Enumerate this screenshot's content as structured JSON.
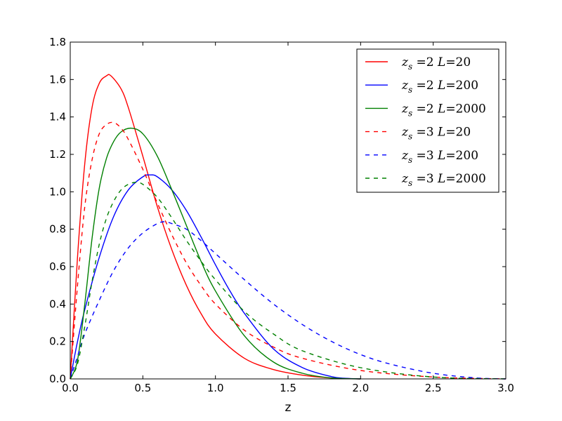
{
  "chart_data": {
    "type": "line",
    "title": "",
    "xlabel": "z",
    "ylabel": "",
    "xlim": [
      0,
      3
    ],
    "ylim": [
      0,
      1.8
    ],
    "xticks": [
      0.0,
      0.5,
      1.0,
      1.5,
      2.0,
      2.5,
      3.0
    ],
    "xtick_labels": [
      "0.0",
      "0.5",
      "1.0",
      "1.5",
      "2.0",
      "2.5",
      "3.0"
    ],
    "yticks": [
      0.0,
      0.2,
      0.4,
      0.6,
      0.8,
      1.0,
      1.2,
      1.4,
      1.6,
      1.8
    ],
    "ytick_labels": [
      "0.0",
      "0.2",
      "0.4",
      "0.6",
      "0.8",
      "1.0",
      "1.2",
      "1.4",
      "1.6",
      "1.8"
    ],
    "grid": false,
    "legend_position": "top-right",
    "series": [
      {
        "name": "z_s = 2  L = 20",
        "color": "#ff0000",
        "dash": "solid",
        "x": [
          0,
          0.05,
          0.1,
          0.15,
          0.2,
          0.25,
          0.28,
          0.35,
          0.4,
          0.5,
          0.6,
          0.7,
          0.8,
          0.9,
          1.0,
          1.2,
          1.4,
          1.6,
          1.8,
          2.0
        ],
        "y": [
          0,
          0.65,
          1.15,
          1.45,
          1.58,
          1.62,
          1.62,
          1.55,
          1.45,
          1.19,
          0.92,
          0.69,
          0.5,
          0.35,
          0.24,
          0.11,
          0.05,
          0.02,
          0.005,
          0
        ]
      },
      {
        "name": "z_s = 2  L = 200",
        "color": "#0000ff",
        "dash": "solid",
        "x": [
          0,
          0.05,
          0.1,
          0.2,
          0.3,
          0.4,
          0.5,
          0.55,
          0.6,
          0.7,
          0.8,
          0.9,
          1.0,
          1.1,
          1.2,
          1.4,
          1.6,
          1.8,
          1.9,
          2.0
        ],
        "y": [
          0,
          0.2,
          0.37,
          0.65,
          0.87,
          1.01,
          1.08,
          1.09,
          1.08,
          1.01,
          0.9,
          0.76,
          0.61,
          0.47,
          0.35,
          0.16,
          0.06,
          0.012,
          0.003,
          0
        ]
      },
      {
        "name": "z_s = 2  L = 2000",
        "color": "#008000",
        "dash": "solid",
        "x": [
          0,
          0.05,
          0.1,
          0.15,
          0.2,
          0.25,
          0.3,
          0.35,
          0.42,
          0.5,
          0.6,
          0.7,
          0.8,
          0.9,
          1.0,
          1.2,
          1.4,
          1.6,
          1.8,
          2.0
        ],
        "y": [
          0,
          0.1,
          0.4,
          0.75,
          1.02,
          1.18,
          1.27,
          1.32,
          1.34,
          1.31,
          1.19,
          1.01,
          0.82,
          0.63,
          0.47,
          0.23,
          0.09,
          0.03,
          0.005,
          0
        ]
      },
      {
        "name": "z_s = 3  L = 20",
        "color": "#ff0000",
        "dash": "dashed",
        "x": [
          0,
          0.05,
          0.1,
          0.15,
          0.2,
          0.25,
          0.3,
          0.35,
          0.4,
          0.5,
          0.6,
          0.7,
          0.8,
          0.9,
          1.0,
          1.2,
          1.4,
          1.6,
          2.0,
          2.5,
          3.0
        ],
        "y": [
          0,
          0.5,
          0.92,
          1.17,
          1.31,
          1.36,
          1.37,
          1.34,
          1.28,
          1.12,
          0.94,
          0.77,
          0.62,
          0.5,
          0.4,
          0.26,
          0.17,
          0.11,
          0.045,
          0.01,
          0
        ]
      },
      {
        "name": "z_s = 3  L = 200",
        "color": "#0000ff",
        "dash": "dashed",
        "x": [
          0,
          0.05,
          0.1,
          0.2,
          0.3,
          0.4,
          0.5,
          0.6,
          0.65,
          0.7,
          0.8,
          0.9,
          1.0,
          1.2,
          1.4,
          1.6,
          1.8,
          2.0,
          2.2,
          2.5,
          2.8,
          3.0
        ],
        "y": [
          0,
          0.12,
          0.24,
          0.42,
          0.58,
          0.7,
          0.78,
          0.83,
          0.84,
          0.83,
          0.8,
          0.74,
          0.67,
          0.53,
          0.4,
          0.29,
          0.2,
          0.13,
          0.08,
          0.03,
          0.005,
          0
        ]
      },
      {
        "name": "z_s = 3  L = 2000",
        "color": "#008000",
        "dash": "dashed",
        "x": [
          0,
          0.05,
          0.1,
          0.15,
          0.2,
          0.25,
          0.3,
          0.35,
          0.4,
          0.45,
          0.5,
          0.6,
          0.7,
          0.8,
          0.9,
          1.0,
          1.2,
          1.4,
          1.6,
          2.0,
          2.5,
          3.0
        ],
        "y": [
          0,
          0.08,
          0.28,
          0.52,
          0.72,
          0.86,
          0.95,
          1.01,
          1.04,
          1.05,
          1.04,
          0.97,
          0.86,
          0.74,
          0.63,
          0.53,
          0.36,
          0.24,
          0.15,
          0.06,
          0.01,
          0
        ]
      }
    ],
    "legend": [
      {
        "zs": "2",
        "L": "20"
      },
      {
        "zs": "2",
        "L": "200"
      },
      {
        "zs": "2",
        "L": "2000"
      },
      {
        "zs": "3",
        "L": "20"
      },
      {
        "zs": "3",
        "L": "200"
      },
      {
        "zs": "3",
        "L": "2000"
      }
    ]
  }
}
